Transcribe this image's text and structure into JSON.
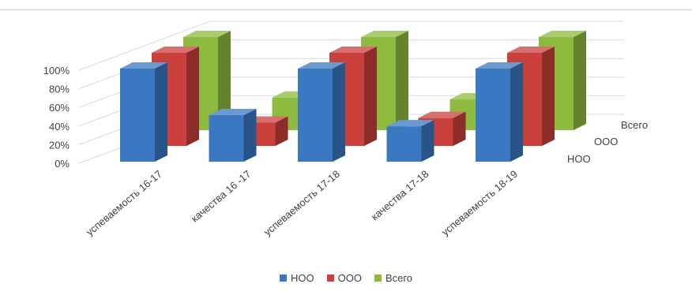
{
  "chart_data": {
    "type": "bar",
    "title": "",
    "categories": [
      "успеваемость 16-17",
      "качества 16 -17",
      "успеваемость 17-18",
      "качества 17-18",
      "успеваемость 18-19"
    ],
    "series": [
      {
        "name": "НОО",
        "color": "#3a78c2",
        "values": [
          1.0,
          0.5,
          1.0,
          0.38,
          1.0
        ]
      },
      {
        "name": "ООО",
        "color": "#c9403c",
        "values": [
          1.0,
          0.25,
          1.0,
          0.3,
          1.0
        ]
      },
      {
        "name": "Всего",
        "color": "#8dbb3f",
        "values": [
          1.0,
          0.35,
          1.0,
          0.33,
          1.0
        ]
      }
    ],
    "y_ticks": [
      "0%",
      "20%",
      "40%",
      "60%",
      "80%",
      "100%"
    ],
    "ylim": [
      0,
      1
    ],
    "depth_labels": [
      "НОО",
      "ООО",
      "Всего"
    ],
    "legend": [
      "НОО",
      "ООО",
      "Всего"
    ],
    "legend_position": "bottom",
    "grid": true
  }
}
